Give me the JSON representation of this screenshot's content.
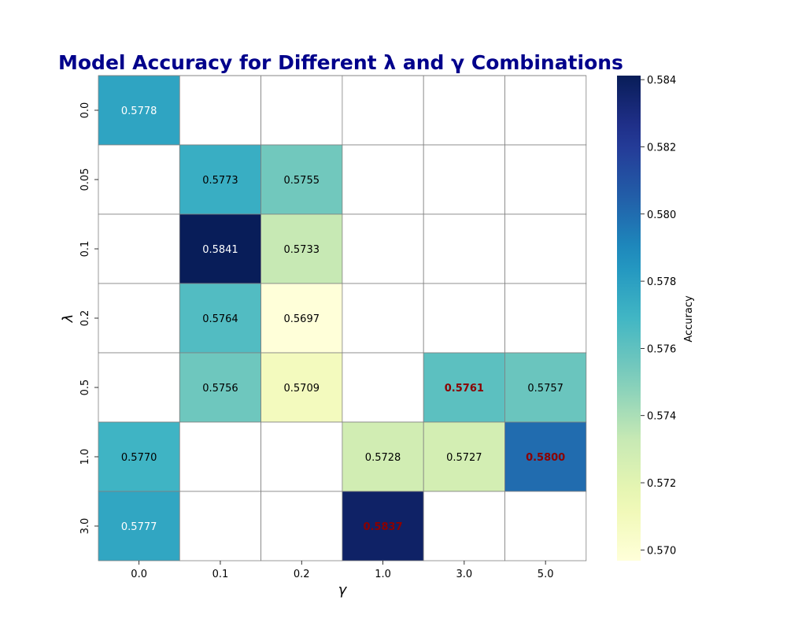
{
  "chart_data": {
    "type": "heatmap",
    "title": "Model Accuracy for Different λ and γ Combinations",
    "xlabel": "γ",
    "ylabel": "λ",
    "x_categories": [
      "0.0",
      "0.1",
      "0.2",
      "1.0",
      "3.0",
      "5.0"
    ],
    "y_categories": [
      "0.0",
      "0.05",
      "0.1",
      "0.2",
      "0.5",
      "1.0",
      "3.0"
    ],
    "values": [
      [
        0.5778,
        null,
        null,
        null,
        null,
        null
      ],
      [
        null,
        0.5773,
        0.5755,
        null,
        null,
        null
      ],
      [
        null,
        0.5841,
        0.5733,
        null,
        null,
        null
      ],
      [
        null,
        0.5764,
        0.5697,
        null,
        null,
        null
      ],
      [
        null,
        0.5756,
        0.5709,
        null,
        0.5761,
        0.5757
      ],
      [
        0.577,
        null,
        null,
        0.5728,
        0.5727,
        0.58
      ],
      [
        0.5777,
        null,
        null,
        0.5837,
        null,
        null
      ]
    ],
    "highlighted": [
      [
        4,
        4
      ],
      [
        5,
        5
      ],
      [
        6,
        3
      ]
    ],
    "highlight_color": "#8b0000",
    "title_color": "#00008b",
    "gridline_color": "#808080",
    "colormap": "YlGnBu",
    "colorbar": {
      "label": "Accuracy",
      "vmin": 0.56968,
      "vmax": 0.58412,
      "ticks": [
        "0.570",
        "0.572",
        "0.574",
        "0.576",
        "0.578",
        "0.580",
        "0.582",
        "0.584"
      ]
    }
  }
}
